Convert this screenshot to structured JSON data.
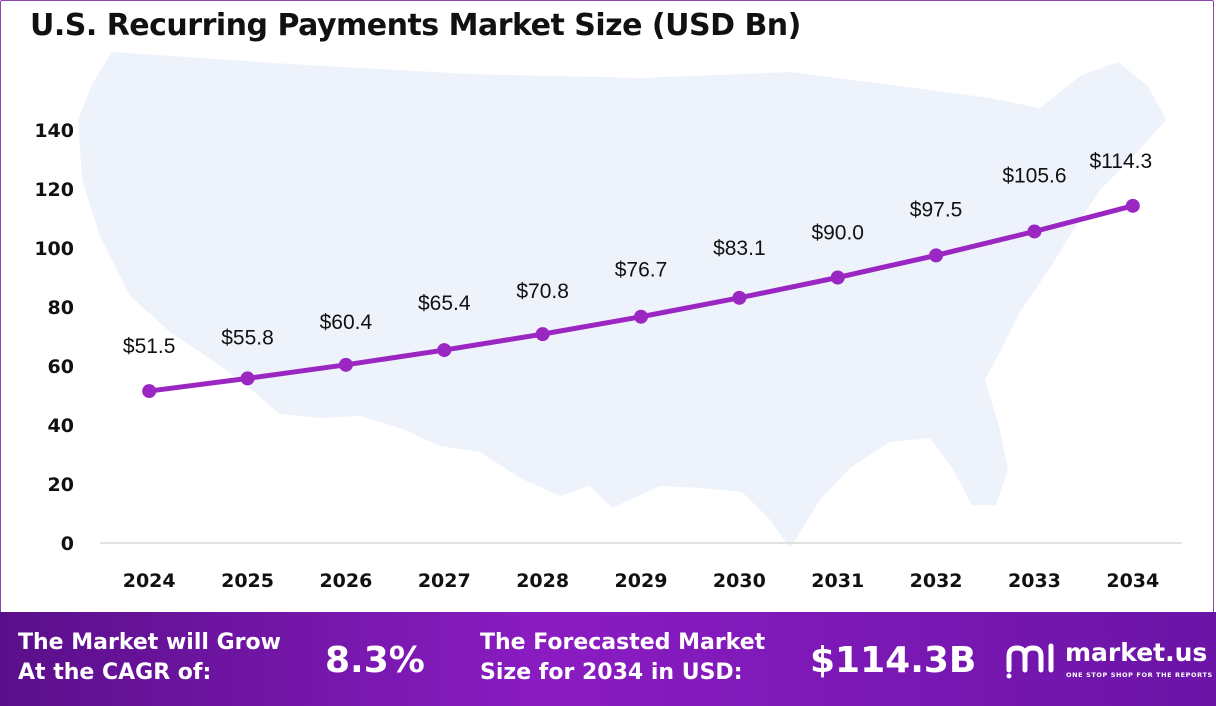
{
  "chart_data": {
    "type": "line",
    "title": "U.S. Recurring Payments Market Size (USD Bn)",
    "x": [
      "2024",
      "2025",
      "2026",
      "2027",
      "2028",
      "2029",
      "2030",
      "2031",
      "2032",
      "2033",
      "2034"
    ],
    "values": [
      51.5,
      55.8,
      60.4,
      65.4,
      70.8,
      76.7,
      83.1,
      90.0,
      97.5,
      105.6,
      114.3
    ],
    "data_labels": [
      "$51.5",
      "$55.8",
      "$60.4",
      "$65.4",
      "$70.8",
      "$76.7",
      "$83.1",
      "$90.0",
      "$97.5",
      "$105.6",
      "$114.3"
    ],
    "yticks": [
      0,
      20,
      40,
      60,
      80,
      100,
      120,
      140
    ],
    "ylim": [
      0,
      140
    ],
    "grid": false,
    "legend": "none",
    "line_color": "#9b27c2",
    "background_shape": "us-map-silhouette"
  },
  "footer": {
    "cagr_text_line1": "The Market will Grow",
    "cagr_text_line2": "At the CAGR of:",
    "cagr_value": "8.3%",
    "forecast_text_line1": "The Forecasted Market",
    "forecast_text_line2": "Size for 2034 in USD:",
    "forecast_value": "$114.3B",
    "logo_name": "market.us",
    "logo_tagline": "ONE STOP SHOP FOR THE REPORTS",
    "logo_icon": "market-us-logo-icon"
  }
}
